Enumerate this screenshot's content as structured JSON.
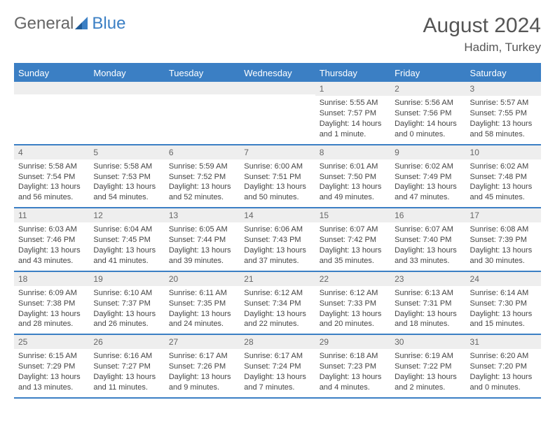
{
  "brand": {
    "part1": "General",
    "part2": "Blue"
  },
  "title": "August 2024",
  "location": "Hadim, Turkey",
  "colors": {
    "accent": "#3b7fc4",
    "header_text": "#ffffff",
    "daynum_bg": "#eeeeee",
    "text": "#444444",
    "bg": "#ffffff"
  },
  "day_headers": [
    "Sunday",
    "Monday",
    "Tuesday",
    "Wednesday",
    "Thursday",
    "Friday",
    "Saturday"
  ],
  "weeks": [
    [
      {
        "blank": true
      },
      {
        "blank": true
      },
      {
        "blank": true
      },
      {
        "blank": true
      },
      {
        "n": "1",
        "sr": "Sunrise: 5:55 AM",
        "ss": "Sunset: 7:57 PM",
        "dl": "Daylight: 14 hours and 1 minute."
      },
      {
        "n": "2",
        "sr": "Sunrise: 5:56 AM",
        "ss": "Sunset: 7:56 PM",
        "dl": "Daylight: 14 hours and 0 minutes."
      },
      {
        "n": "3",
        "sr": "Sunrise: 5:57 AM",
        "ss": "Sunset: 7:55 PM",
        "dl": "Daylight: 13 hours and 58 minutes."
      }
    ],
    [
      {
        "n": "4",
        "sr": "Sunrise: 5:58 AM",
        "ss": "Sunset: 7:54 PM",
        "dl": "Daylight: 13 hours and 56 minutes."
      },
      {
        "n": "5",
        "sr": "Sunrise: 5:58 AM",
        "ss": "Sunset: 7:53 PM",
        "dl": "Daylight: 13 hours and 54 minutes."
      },
      {
        "n": "6",
        "sr": "Sunrise: 5:59 AM",
        "ss": "Sunset: 7:52 PM",
        "dl": "Daylight: 13 hours and 52 minutes."
      },
      {
        "n": "7",
        "sr": "Sunrise: 6:00 AM",
        "ss": "Sunset: 7:51 PM",
        "dl": "Daylight: 13 hours and 50 minutes."
      },
      {
        "n": "8",
        "sr": "Sunrise: 6:01 AM",
        "ss": "Sunset: 7:50 PM",
        "dl": "Daylight: 13 hours and 49 minutes."
      },
      {
        "n": "9",
        "sr": "Sunrise: 6:02 AM",
        "ss": "Sunset: 7:49 PM",
        "dl": "Daylight: 13 hours and 47 minutes."
      },
      {
        "n": "10",
        "sr": "Sunrise: 6:02 AM",
        "ss": "Sunset: 7:48 PM",
        "dl": "Daylight: 13 hours and 45 minutes."
      }
    ],
    [
      {
        "n": "11",
        "sr": "Sunrise: 6:03 AM",
        "ss": "Sunset: 7:46 PM",
        "dl": "Daylight: 13 hours and 43 minutes."
      },
      {
        "n": "12",
        "sr": "Sunrise: 6:04 AM",
        "ss": "Sunset: 7:45 PM",
        "dl": "Daylight: 13 hours and 41 minutes."
      },
      {
        "n": "13",
        "sr": "Sunrise: 6:05 AM",
        "ss": "Sunset: 7:44 PM",
        "dl": "Daylight: 13 hours and 39 minutes."
      },
      {
        "n": "14",
        "sr": "Sunrise: 6:06 AM",
        "ss": "Sunset: 7:43 PM",
        "dl": "Daylight: 13 hours and 37 minutes."
      },
      {
        "n": "15",
        "sr": "Sunrise: 6:07 AM",
        "ss": "Sunset: 7:42 PM",
        "dl": "Daylight: 13 hours and 35 minutes."
      },
      {
        "n": "16",
        "sr": "Sunrise: 6:07 AM",
        "ss": "Sunset: 7:40 PM",
        "dl": "Daylight: 13 hours and 33 minutes."
      },
      {
        "n": "17",
        "sr": "Sunrise: 6:08 AM",
        "ss": "Sunset: 7:39 PM",
        "dl": "Daylight: 13 hours and 30 minutes."
      }
    ],
    [
      {
        "n": "18",
        "sr": "Sunrise: 6:09 AM",
        "ss": "Sunset: 7:38 PM",
        "dl": "Daylight: 13 hours and 28 minutes."
      },
      {
        "n": "19",
        "sr": "Sunrise: 6:10 AM",
        "ss": "Sunset: 7:37 PM",
        "dl": "Daylight: 13 hours and 26 minutes."
      },
      {
        "n": "20",
        "sr": "Sunrise: 6:11 AM",
        "ss": "Sunset: 7:35 PM",
        "dl": "Daylight: 13 hours and 24 minutes."
      },
      {
        "n": "21",
        "sr": "Sunrise: 6:12 AM",
        "ss": "Sunset: 7:34 PM",
        "dl": "Daylight: 13 hours and 22 minutes."
      },
      {
        "n": "22",
        "sr": "Sunrise: 6:12 AM",
        "ss": "Sunset: 7:33 PM",
        "dl": "Daylight: 13 hours and 20 minutes."
      },
      {
        "n": "23",
        "sr": "Sunrise: 6:13 AM",
        "ss": "Sunset: 7:31 PM",
        "dl": "Daylight: 13 hours and 18 minutes."
      },
      {
        "n": "24",
        "sr": "Sunrise: 6:14 AM",
        "ss": "Sunset: 7:30 PM",
        "dl": "Daylight: 13 hours and 15 minutes."
      }
    ],
    [
      {
        "n": "25",
        "sr": "Sunrise: 6:15 AM",
        "ss": "Sunset: 7:29 PM",
        "dl": "Daylight: 13 hours and 13 minutes."
      },
      {
        "n": "26",
        "sr": "Sunrise: 6:16 AM",
        "ss": "Sunset: 7:27 PM",
        "dl": "Daylight: 13 hours and 11 minutes."
      },
      {
        "n": "27",
        "sr": "Sunrise: 6:17 AM",
        "ss": "Sunset: 7:26 PM",
        "dl": "Daylight: 13 hours and 9 minutes."
      },
      {
        "n": "28",
        "sr": "Sunrise: 6:17 AM",
        "ss": "Sunset: 7:24 PM",
        "dl": "Daylight: 13 hours and 7 minutes."
      },
      {
        "n": "29",
        "sr": "Sunrise: 6:18 AM",
        "ss": "Sunset: 7:23 PM",
        "dl": "Daylight: 13 hours and 4 minutes."
      },
      {
        "n": "30",
        "sr": "Sunrise: 6:19 AM",
        "ss": "Sunset: 7:22 PM",
        "dl": "Daylight: 13 hours and 2 minutes."
      },
      {
        "n": "31",
        "sr": "Sunrise: 6:20 AM",
        "ss": "Sunset: 7:20 PM",
        "dl": "Daylight: 13 hours and 0 minutes."
      }
    ]
  ]
}
